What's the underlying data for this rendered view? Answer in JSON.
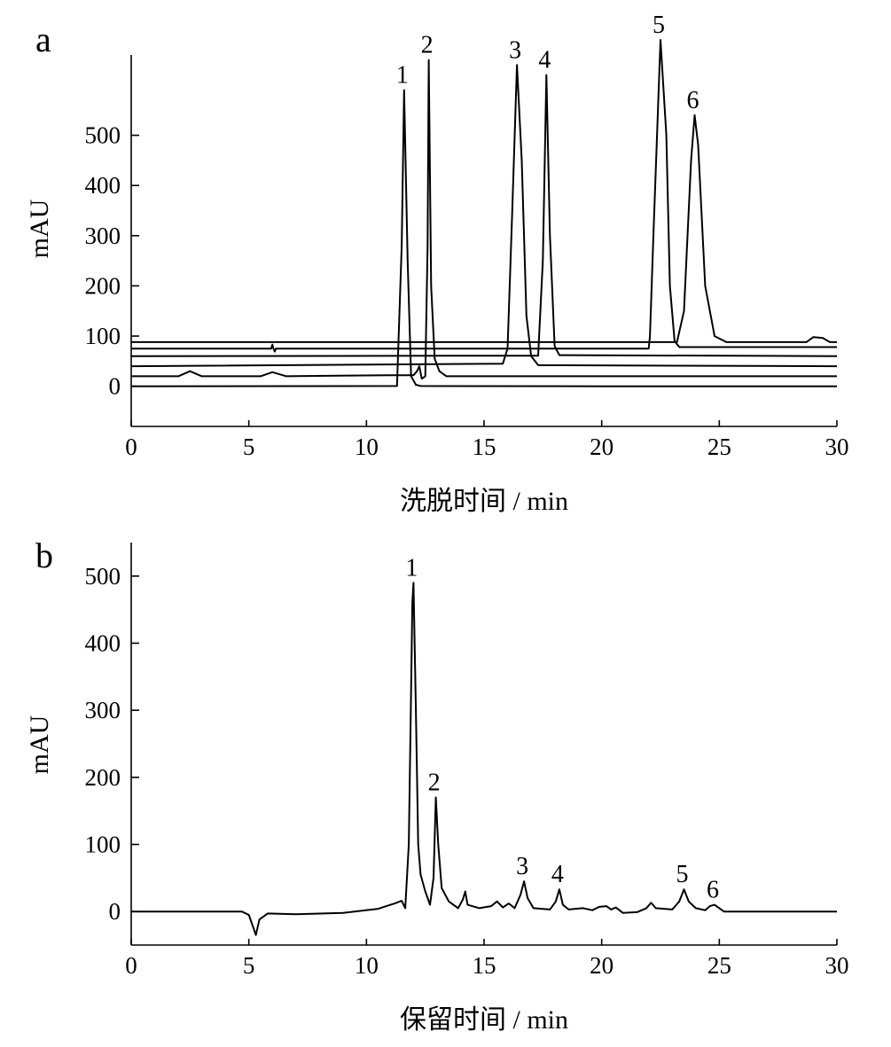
{
  "chart_data": [
    {
      "type": "line",
      "panel_label": "a",
      "xlabel": "洗脱时间 / min",
      "ylabel": "mAU",
      "xlim": [
        0,
        30
      ],
      "ylim": [
        -80,
        660
      ],
      "x_ticks": [
        0,
        5,
        10,
        15,
        20,
        25,
        30
      ],
      "x_tick_labels": [
        "0",
        "5",
        "10",
        "15",
        "20",
        "25",
        "30"
      ],
      "y_ticks": [
        0,
        100,
        200,
        300,
        400,
        500
      ],
      "y_tick_labels": [
        "0",
        "100",
        "200",
        "300",
        "400",
        "500"
      ],
      "series": [
        {
          "baseline": 0,
          "points": [
            [
              0,
              0
            ],
            [
              11.3,
              0.5
            ],
            [
              11.5,
              280
            ],
            [
              11.6,
              590
            ],
            [
              11.75,
              250
            ],
            [
              11.9,
              20
            ],
            [
              12.1,
              3
            ],
            [
              12.3,
              0.5
            ],
            [
              20,
              0
            ],
            [
              30,
              0
            ]
          ]
        },
        {
          "baseline": 20,
          "points": [
            [
              0,
              20
            ],
            [
              2.0,
              20
            ],
            [
              2.5,
              30
            ],
            [
              3.0,
              20
            ],
            [
              5.5,
              20
            ],
            [
              6.0,
              28
            ],
            [
              6.6,
              20
            ],
            [
              11.0,
              22
            ],
            [
              12.0,
              22
            ],
            [
              12.15,
              30
            ],
            [
              12.25,
              40
            ],
            [
              12.35,
              15
            ],
            [
              12.5,
              20
            ],
            [
              12.6,
              280
            ],
            [
              12.65,
              650
            ],
            [
              12.75,
              200
            ],
            [
              12.9,
              55
            ],
            [
              13.1,
              30
            ],
            [
              13.4,
              20
            ],
            [
              30,
              20
            ]
          ]
        },
        {
          "baseline": 40,
          "points": [
            [
              0,
              40
            ],
            [
              15.8,
              45
            ],
            [
              16.0,
              75
            ],
            [
              16.2,
              350
            ],
            [
              16.4,
              640
            ],
            [
              16.6,
              450
            ],
            [
              16.8,
              140
            ],
            [
              17.0,
              60
            ],
            [
              17.3,
              42
            ],
            [
              30,
              40
            ]
          ]
        },
        {
          "baseline": 60,
          "points": [
            [
              0,
              60
            ],
            [
              17.3,
              61
            ],
            [
              17.5,
              250
            ],
            [
              17.65,
              620
            ],
            [
              17.8,
              300
            ],
            [
              18.0,
              80
            ],
            [
              18.2,
              62
            ],
            [
              30,
              60
            ]
          ]
        },
        {
          "baseline": 75,
          "points": [
            [
              0,
              75
            ],
            [
              5.95,
              75
            ],
            [
              6.0,
              83
            ],
            [
              6.05,
              75
            ],
            [
              6.1,
              69
            ],
            [
              6.15,
              75
            ],
            [
              22.0,
              75
            ],
            [
              22.05,
              100
            ],
            [
              22.2,
              300
            ],
            [
              22.5,
              690
            ],
            [
              22.75,
              500
            ],
            [
              22.9,
              200
            ],
            [
              23.1,
              90
            ],
            [
              23.3,
              78
            ],
            [
              30,
              78
            ]
          ]
        },
        {
          "baseline": 88,
          "points": [
            [
              0,
              88
            ],
            [
              23.2,
              88
            ],
            [
              23.5,
              150
            ],
            [
              23.8,
              450
            ],
            [
              23.95,
              540
            ],
            [
              24.1,
              480
            ],
            [
              24.4,
              200
            ],
            [
              24.8,
              100
            ],
            [
              25.3,
              88
            ],
            [
              28.7,
              88
            ],
            [
              29.0,
              98
            ],
            [
              29.4,
              96
            ],
            [
              29.7,
              88
            ],
            [
              30,
              88
            ]
          ]
        }
      ],
      "peaks": [
        {
          "label": "1",
          "x": 11.6,
          "y": 590
        },
        {
          "label": "2",
          "x": 12.65,
          "y": 650
        },
        {
          "label": "3",
          "x": 16.4,
          "y": 640
        },
        {
          "label": "4",
          "x": 17.65,
          "y": 620
        },
        {
          "label": "5",
          "x": 22.5,
          "y": 690
        },
        {
          "label": "6",
          "x": 23.95,
          "y": 540
        }
      ]
    },
    {
      "type": "line",
      "panel_label": "b",
      "xlabel": "保留时间 / min",
      "ylabel": "mAU",
      "xlim": [
        0,
        30
      ],
      "ylim": [
        -50,
        550
      ],
      "x_ticks": [
        0,
        5,
        10,
        15,
        20,
        25,
        30
      ],
      "x_tick_labels": [
        "0",
        "5",
        "10",
        "15",
        "20",
        "25",
        "30"
      ],
      "y_ticks": [
        0,
        100,
        200,
        300,
        400,
        500
      ],
      "y_tick_labels": [
        "0",
        "100",
        "200",
        "300",
        "400",
        "500"
      ],
      "series": [
        {
          "points": [
            [
              0,
              0
            ],
            [
              4.7,
              0
            ],
            [
              5.0,
              -5
            ],
            [
              5.2,
              -25
            ],
            [
              5.3,
              -35
            ],
            [
              5.45,
              -12
            ],
            [
              5.8,
              -3
            ],
            [
              7.0,
              -4
            ],
            [
              9.0,
              -2
            ],
            [
              10.5,
              4
            ],
            [
              11.2,
              12
            ],
            [
              11.5,
              16
            ],
            [
              11.65,
              5
            ],
            [
              11.8,
              100
            ],
            [
              11.9,
              330
            ],
            [
              11.95,
              460
            ],
            [
              12.0,
              490
            ],
            [
              12.1,
              300
            ],
            [
              12.2,
              100
            ],
            [
              12.3,
              55
            ],
            [
              12.5,
              30
            ],
            [
              12.7,
              10
            ],
            [
              12.85,
              50
            ],
            [
              12.95,
              170
            ],
            [
              13.05,
              100
            ],
            [
              13.2,
              35
            ],
            [
              13.5,
              15
            ],
            [
              13.9,
              5
            ],
            [
              14.1,
              18
            ],
            [
              14.2,
              30
            ],
            [
              14.3,
              10
            ],
            [
              14.8,
              5
            ],
            [
              15.3,
              8
            ],
            [
              15.55,
              15
            ],
            [
              15.8,
              6
            ],
            [
              16.05,
              12
            ],
            [
              16.3,
              5
            ],
            [
              16.55,
              25
            ],
            [
              16.7,
              45
            ],
            [
              16.85,
              20
            ],
            [
              17.1,
              5
            ],
            [
              17.8,
              3
            ],
            [
              18.05,
              15
            ],
            [
              18.2,
              33
            ],
            [
              18.35,
              10
            ],
            [
              18.6,
              3
            ],
            [
              19.2,
              5
            ],
            [
              19.6,
              2
            ],
            [
              19.9,
              7
            ],
            [
              20.2,
              8
            ],
            [
              20.4,
              3
            ],
            [
              20.6,
              6
            ],
            [
              20.9,
              -2
            ],
            [
              21.5,
              -1
            ],
            [
              21.9,
              5
            ],
            [
              22.1,
              13
            ],
            [
              22.3,
              5
            ],
            [
              23.0,
              3
            ],
            [
              23.3,
              15
            ],
            [
              23.5,
              33
            ],
            [
              23.7,
              15
            ],
            [
              24.0,
              5
            ],
            [
              24.4,
              2
            ],
            [
              24.6,
              8
            ],
            [
              24.8,
              10
            ],
            [
              25.0,
              5
            ],
            [
              25.2,
              0
            ],
            [
              30,
              0
            ]
          ]
        }
      ],
      "peaks": [
        {
          "label": "1",
          "x": 12.0,
          "y": 490
        },
        {
          "label": "2",
          "x": 12.95,
          "y": 170
        },
        {
          "label": "3",
          "x": 16.7,
          "y": 45
        },
        {
          "label": "4",
          "x": 18.2,
          "y": 33
        },
        {
          "label": "5",
          "x": 23.5,
          "y": 33
        },
        {
          "label": "6",
          "x": 24.8,
          "y": 10
        }
      ]
    }
  ]
}
